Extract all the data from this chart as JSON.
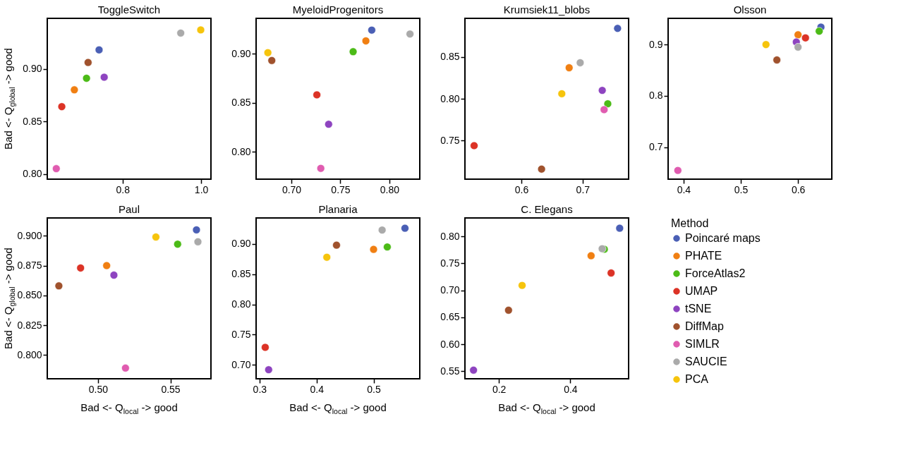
{
  "chart_data": [
    {
      "type": "scatter",
      "title": "ToggleSwitch",
      "ylabel": "Bad <- Q$_{global}$ -> good",
      "marker": "circle",
      "legend": false,
      "xlim": [
        0.608,
        1.025
      ],
      "ylim": [
        0.795,
        0.948
      ],
      "xticks": [
        0.8,
        {
          "value": 1.0,
          "label": "1.0"
        }
      ],
      "yticks": [
        {
          "value": 0.8,
          "label": "0.80"
        },
        0.85,
        {
          "value": 0.9,
          "label": "0.90"
        }
      ],
      "series": [
        {
          "color": "#4a5fb5",
          "x": [
            0.74
          ],
          "values": [
            0.918
          ]
        },
        {
          "color": "#f07f12",
          "x": [
            0.677
          ],
          "values": [
            0.88
          ]
        },
        {
          "color": "#4cbb17",
          "x": [
            0.708
          ],
          "values": [
            0.891
          ]
        },
        {
          "color": "#dc3326",
          "x": [
            0.645
          ],
          "values": [
            0.864
          ]
        },
        {
          "color": "#8e44c0",
          "x": [
            0.753
          ],
          "values": [
            0.892
          ]
        },
        {
          "color": "#a0522d",
          "x": [
            0.712
          ],
          "values": [
            0.906
          ]
        },
        {
          "color": "#e05cb0",
          "x": [
            0.631
          ],
          "values": [
            0.805
          ]
        },
        {
          "color": "#aaaaaa",
          "x": [
            0.948
          ],
          "values": [
            0.934
          ]
        },
        {
          "color": "#f6c40c",
          "x": [
            0.999
          ],
          "values": [
            0.937
          ]
        }
      ]
    },
    {
      "type": "scatter",
      "title": "MyeloidProgenitors",
      "marker": "circle",
      "legend": false,
      "xlim": [
        0.664,
        0.831
      ],
      "ylim": [
        0.772,
        0.936
      ],
      "xticks": [
        {
          "value": 0.7,
          "label": "0.70"
        },
        0.75,
        {
          "value": 0.8,
          "label": "0.80"
        }
      ],
      "yticks": [
        {
          "value": 0.8,
          "label": "0.80"
        },
        0.85,
        {
          "value": 0.9,
          "label": "0.90"
        }
      ],
      "series": [
        {
          "color": "#4a5fb5",
          "x": [
            0.782
          ],
          "values": [
            0.924
          ]
        },
        {
          "color": "#f07f12",
          "x": [
            0.776
          ],
          "values": [
            0.913
          ]
        },
        {
          "color": "#4cbb17",
          "x": [
            0.763
          ],
          "values": [
            0.902
          ]
        },
        {
          "color": "#dc3326",
          "x": [
            0.726
          ],
          "values": [
            0.858
          ]
        },
        {
          "color": "#8e44c0",
          "x": [
            0.738
          ],
          "values": [
            0.828
          ]
        },
        {
          "color": "#a0522d",
          "x": [
            0.68
          ],
          "values": [
            0.893
          ]
        },
        {
          "color": "#e05cb0",
          "x": [
            0.73
          ],
          "values": [
            0.783
          ]
        },
        {
          "color": "#aaaaaa",
          "x": [
            0.821
          ],
          "values": [
            0.92
          ]
        },
        {
          "color": "#f6c40c",
          "x": [
            0.676
          ],
          "values": [
            0.901
          ]
        }
      ]
    },
    {
      "type": "scatter",
      "title": "Krumsiek11_blobs",
      "marker": "circle",
      "legend": false,
      "xlim": [
        0.508,
        0.775
      ],
      "ylim": [
        0.704,
        0.896
      ],
      "xticks": [
        0.6,
        0.7
      ],
      "yticks": [
        0.75,
        {
          "value": 0.8,
          "label": "0.80"
        },
        0.85
      ],
      "series": [
        {
          "color": "#4a5fb5",
          "x": [
            0.757
          ],
          "values": [
            0.884
          ]
        },
        {
          "color": "#f07f12",
          "x": [
            0.678
          ],
          "values": [
            0.837
          ]
        },
        {
          "color": "#4cbb17",
          "x": [
            0.741
          ],
          "values": [
            0.794
          ]
        },
        {
          "color": "#dc3326",
          "x": [
            0.523
          ],
          "values": [
            0.744
          ]
        },
        {
          "color": "#8e44c0",
          "x": [
            0.732
          ],
          "values": [
            0.81
          ]
        },
        {
          "color": "#a0522d",
          "x": [
            0.633
          ],
          "values": [
            0.716
          ]
        },
        {
          "color": "#e05cb0",
          "x": [
            0.735
          ],
          "values": [
            0.787
          ]
        },
        {
          "color": "#aaaaaa",
          "x": [
            0.696
          ],
          "values": [
            0.843
          ]
        },
        {
          "color": "#f6c40c",
          "x": [
            0.666
          ],
          "values": [
            0.806
          ]
        }
      ]
    },
    {
      "type": "scatter",
      "title": "Olsson",
      "marker": "circle",
      "legend": false,
      "xlim": [
        0.373,
        0.659
      ],
      "ylim": [
        0.638,
        0.951
      ],
      "xticks": [
        0.4,
        0.5,
        0.6
      ],
      "yticks": [
        0.7,
        0.8,
        0.9
      ],
      "series": [
        {
          "color": "#4a5fb5",
          "x": [
            0.64
          ],
          "values": [
            0.934
          ]
        },
        {
          "color": "#f07f12",
          "x": [
            0.6
          ],
          "values": [
            0.919
          ]
        },
        {
          "color": "#4cbb17",
          "x": [
            0.637
          ],
          "values": [
            0.926
          ]
        },
        {
          "color": "#dc3326",
          "x": [
            0.613
          ],
          "values": [
            0.913
          ]
        },
        {
          "color": "#8e44c0",
          "x": [
            0.597
          ],
          "values": [
            0.905
          ]
        },
        {
          "color": "#a0522d",
          "x": [
            0.563
          ],
          "values": [
            0.87
          ]
        },
        {
          "color": "#e05cb0",
          "x": [
            0.39
          ],
          "values": [
            0.655
          ]
        },
        {
          "color": "#aaaaaa",
          "x": [
            0.6
          ],
          "values": [
            0.895
          ]
        },
        {
          "color": "#f6c40c",
          "x": [
            0.544
          ],
          "values": [
            0.9
          ]
        }
      ]
    },
    {
      "type": "scatter",
      "title": "Paul",
      "xlabel": "Bad <- Q$_{local}$ -> good",
      "ylabel": "Bad <- Q$_{global}$ -> good",
      "marker": "circle",
      "legend": false,
      "xlim": [
        0.465,
        0.578
      ],
      "ylim": [
        0.78,
        0.915
      ],
      "xticks": [
        {
          "value": 0.5,
          "label": "0.50"
        },
        0.55
      ],
      "yticks": [
        {
          "value": 0.8,
          "label": "0.800"
        },
        0.825,
        {
          "value": 0.85,
          "label": "0.850"
        },
        0.875,
        {
          "value": 0.9,
          "label": "0.900"
        }
      ],
      "series": [
        {
          "color": "#4a5fb5",
          "x": [
            0.568
          ],
          "values": [
            0.905
          ]
        },
        {
          "color": "#f07f12",
          "x": [
            0.506
          ],
          "values": [
            0.875
          ]
        },
        {
          "color": "#4cbb17",
          "x": [
            0.555
          ],
          "values": [
            0.893
          ]
        },
        {
          "color": "#dc3326",
          "x": [
            0.488
          ],
          "values": [
            0.873
          ]
        },
        {
          "color": "#8e44c0",
          "x": [
            0.511
          ],
          "values": [
            0.867
          ]
        },
        {
          "color": "#a0522d",
          "x": [
            0.473
          ],
          "values": [
            0.858
          ]
        },
        {
          "color": "#e05cb0",
          "x": [
            0.519
          ],
          "values": [
            0.789
          ]
        },
        {
          "color": "#aaaaaa",
          "x": [
            0.569
          ],
          "values": [
            0.895
          ]
        },
        {
          "color": "#f6c40c",
          "x": [
            0.54
          ],
          "values": [
            0.899
          ]
        }
      ]
    },
    {
      "type": "scatter",
      "title": "Planaria",
      "xlabel": "Bad <- Q$_{local}$ -> good",
      "marker": "circle",
      "legend": false,
      "xlim": [
        0.294,
        0.581
      ],
      "ylim": [
        0.677,
        0.943
      ],
      "xticks": [
        0.3,
        0.4,
        0.5
      ],
      "yticks": [
        {
          "value": 0.7,
          "label": "0.70"
        },
        0.75,
        {
          "value": 0.8,
          "label": "0.80"
        },
        0.85,
        {
          "value": 0.9,
          "label": "0.90"
        }
      ],
      "series": [
        {
          "color": "#4a5fb5",
          "x": [
            0.555
          ],
          "values": [
            0.926
          ]
        },
        {
          "color": "#f07f12",
          "x": [
            0.5
          ],
          "values": [
            0.891
          ]
        },
        {
          "color": "#4cbb17",
          "x": [
            0.524
          ],
          "values": [
            0.895
          ]
        },
        {
          "color": "#dc3326",
          "x": [
            0.31
          ],
          "values": [
            0.729
          ]
        },
        {
          "color": "#8e44c0",
          "x": [
            0.316
          ],
          "values": [
            0.692
          ]
        },
        {
          "color": "#a0522d",
          "x": [
            0.435
          ],
          "values": [
            0.898
          ]
        },
        {
          "color": "#e05cb0",
          "x": [
            null
          ],
          "values": [
            null
          ]
        },
        {
          "color": "#aaaaaa",
          "x": [
            0.515
          ],
          "values": [
            0.923
          ]
        },
        {
          "color": "#f6c40c",
          "x": [
            0.418
          ],
          "values": [
            0.878
          ]
        }
      ]
    },
    {
      "type": "scatter",
      "title": "C. Elegans",
      "xlabel": "Bad <- Q$_{local}$ -> good",
      "marker": "circle",
      "legend": "right",
      "legend_title": "Method",
      "xlim": [
        0.105,
        0.563
      ],
      "ylim": [
        0.536,
        0.834
      ],
      "xticks": [
        0.2,
        0.4
      ],
      "yticks": [
        0.55,
        {
          "value": 0.6,
          "label": "0.60"
        },
        0.65,
        {
          "value": 0.7,
          "label": "0.70"
        },
        0.75,
        {
          "value": 0.8,
          "label": "0.80"
        }
      ],
      "series": [
        {
          "name": "Poincaré maps",
          "color": "#4a5fb5",
          "x": [
            0.538
          ],
          "values": [
            0.815
          ]
        },
        {
          "name": "PHATE",
          "color": "#f07f12",
          "x": [
            0.458
          ],
          "values": [
            0.764
          ]
        },
        {
          "name": "ForceAtlas2",
          "color": "#4cbb17",
          "x": [
            0.495
          ],
          "values": [
            0.776
          ]
        },
        {
          "name": "UMAP",
          "color": "#dc3326",
          "x": [
            0.514
          ],
          "values": [
            0.732
          ]
        },
        {
          "name": "tSNE",
          "color": "#8e44c0",
          "x": [
            0.129
          ],
          "values": [
            0.552
          ]
        },
        {
          "name": "DiffMap",
          "color": "#a0522d",
          "x": [
            0.227
          ],
          "values": [
            0.663
          ]
        },
        {
          "name": "SIMLR",
          "color": "#e05cb0",
          "x": [
            null
          ],
          "values": [
            null
          ]
        },
        {
          "name": "SAUCIE",
          "color": "#aaaaaa",
          "x": [
            0.489
          ],
          "values": [
            0.777
          ]
        },
        {
          "name": "PCA",
          "color": "#f6c40c",
          "x": [
            0.265
          ],
          "values": [
            0.709
          ]
        }
      ]
    }
  ]
}
